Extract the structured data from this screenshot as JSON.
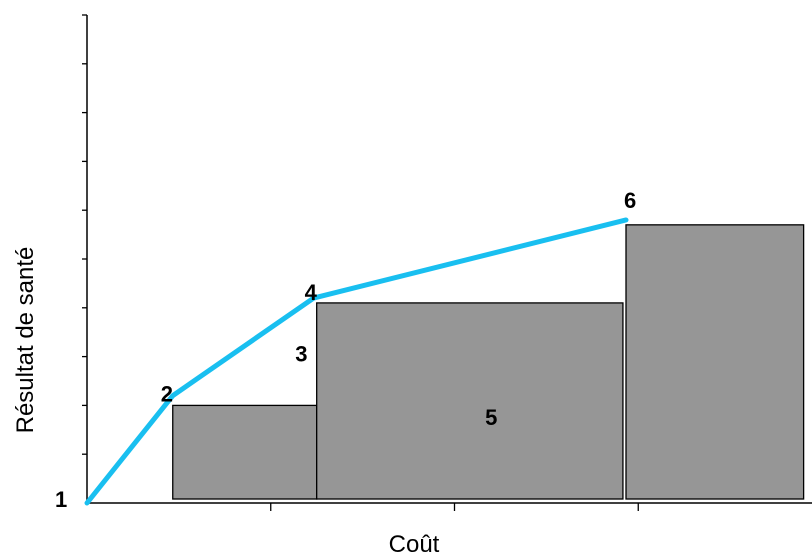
{
  "chart_data": {
    "type": "line",
    "title": "",
    "xlabel": "Coût",
    "ylabel": "Résultat de santé",
    "xlim": [
      0,
      12
    ],
    "ylim": [
      0,
      10
    ],
    "grid": false,
    "x_ticks": [
      3,
      6,
      9,
      12
    ],
    "y_ticks": [
      1,
      2,
      3,
      4,
      5,
      6,
      7,
      8,
      9,
      10
    ],
    "frontier": {
      "color": "#19bff0",
      "points": [
        {
          "label": "1",
          "x": 0,
          "y": 0
        },
        {
          "label": "2",
          "x": 1.4,
          "y": 2.2
        },
        {
          "label": "4",
          "x": 3.7,
          "y": 4.2
        },
        {
          "label": "6",
          "x": 8.8,
          "y": 5.8
        }
      ]
    },
    "bars": {
      "color": "#969696",
      "items": [
        {
          "x0": 1.4,
          "x1": 3.75,
          "y": 2.0
        },
        {
          "x0": 3.75,
          "x1": 8.75,
          "y": 4.1
        },
        {
          "x0": 8.8,
          "x1": 11.7,
          "y": 5.7
        }
      ]
    },
    "annotations": [
      {
        "label": "3",
        "x": 3.4,
        "y": 2.9
      },
      {
        "label": "5",
        "x": 6.5,
        "y": 1.6
      }
    ]
  }
}
